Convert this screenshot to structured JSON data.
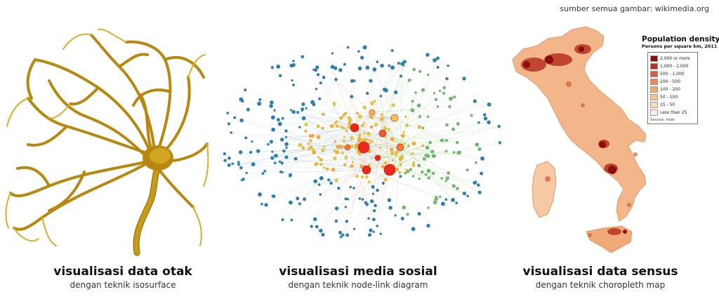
{
  "credit": "sumber semua gambar: wikimedia.org",
  "panels": [
    {
      "title": "visualisasi data otak",
      "subtitle": "dengan teknik isosurface"
    },
    {
      "title": "visualisasi media sosial",
      "subtitle": "dengan teknik node-link diagram"
    },
    {
      "title": "visualisasi data sensus",
      "subtitle": "dengan teknik choropleth map"
    }
  ],
  "legend": {
    "title": "Population density",
    "subtitle": "Persons per square km, 2011",
    "items": [
      {
        "label": "2,000 or more",
        "color": "#8b0d0d"
      },
      {
        "label": "1,000 - 2,000",
        "color": "#b8321f"
      },
      {
        "label": "500 - 1,000",
        "color": "#d9573a"
      },
      {
        "label": "200 - 500",
        "color": "#ec8a55"
      },
      {
        "label": "100 - 200",
        "color": "#f3a86e"
      },
      {
        "label": "50 - 100",
        "color": "#f7c38f"
      },
      {
        "label": "25 - 50",
        "color": "#fadbb6"
      },
      {
        "label": "Less than 25",
        "color": "#fdf1e3"
      }
    ],
    "source": "Source: Istat"
  },
  "colors": {
    "brain": "#c89a16",
    "brain_dark": "#8a6508",
    "node_blue": "#2e7fb0",
    "node_red": "#e8291c",
    "map_base": "#f2b68a"
  }
}
